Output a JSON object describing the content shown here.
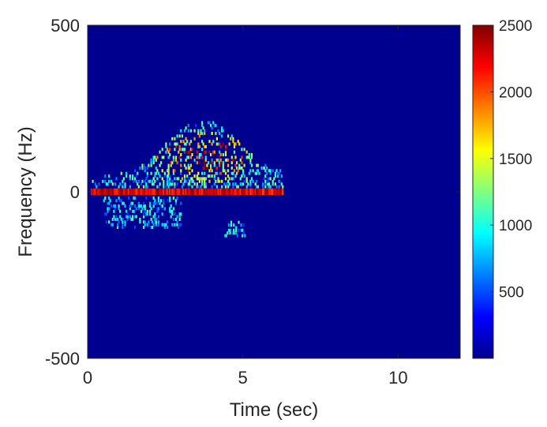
{
  "chart_data": {
    "type": "heatmap",
    "title": "",
    "xlabel": "Time (sec)",
    "ylabel": "Frequency (Hz)",
    "xlim": [
      0,
      12
    ],
    "ylim": [
      -500,
      500
    ],
    "x_ticks": [
      "0",
      "5",
      "10"
    ],
    "x_tick_values": [
      0,
      5,
      10
    ],
    "y_ticks": [
      "-500",
      "0",
      "500"
    ],
    "y_tick_values": [
      -500,
      0,
      500
    ],
    "colormap": "jet",
    "clim": [
      0,
      2500
    ],
    "colorbar_ticks": [
      "500",
      "1000",
      "1500",
      "2000",
      "2500"
    ],
    "colorbar_tick_values": [
      500,
      1000,
      1500,
      2000,
      2500
    ],
    "background_value": 0,
    "grid": false,
    "features": [
      {
        "name": "zero-frequency band",
        "t_range": [
          0.1,
          6.3
        ],
        "f_center": 0,
        "f_halfwidth": 10,
        "level": 2500
      },
      {
        "name": "upper doppler envelope",
        "t_range": [
          0.1,
          6.3
        ],
        "peak_time": 3.7,
        "peak_freq": 210,
        "level_range": [
          400,
          2500
        ]
      },
      {
        "name": "lower doppler trace",
        "t_range": [
          0.5,
          3.0
        ],
        "f_range": [
          -110,
          -20
        ],
        "level_range": [
          400,
          1200
        ]
      },
      {
        "name": "lower doppler blob",
        "t_range": [
          4.4,
          5.1
        ],
        "f_range": [
          -135,
          -90
        ],
        "level_range": [
          400,
          1200
        ]
      }
    ]
  }
}
